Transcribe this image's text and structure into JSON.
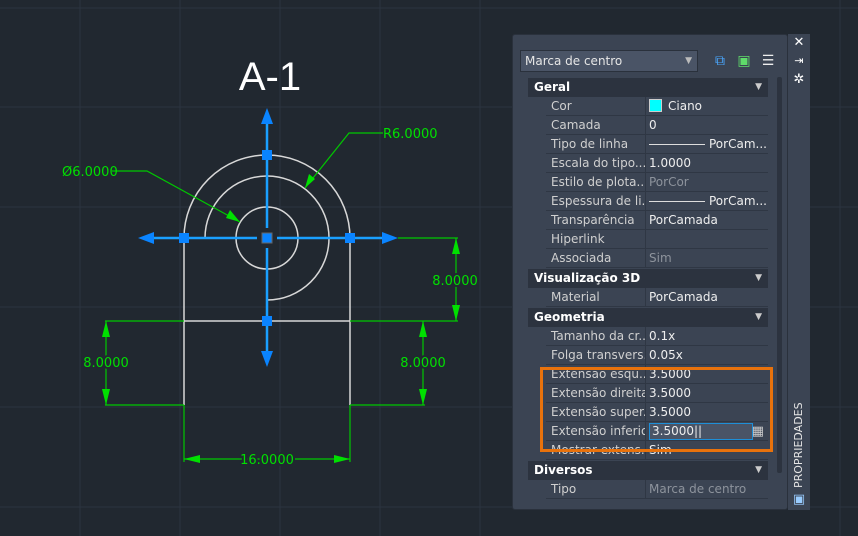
{
  "drawing": {
    "title": "A-1",
    "dims": {
      "diameter": "Ø6.0000",
      "radius": "R6.0000",
      "right_upper": "8.0000",
      "left": "8.0000",
      "right_lower": "8.0000",
      "bottom": "16.0000"
    }
  },
  "panel": {
    "selector": "Marca de centro",
    "side_label": "PROPRIEDADES",
    "sections": [
      {
        "title": "Geral",
        "rows": [
          [
            "Cor",
            "Ciano"
          ],
          [
            "Camada",
            "0"
          ],
          [
            "Tipo de linha",
            "PorCam..."
          ],
          [
            "Escala do tipo...",
            "1.0000"
          ],
          [
            "Estilo de plota...",
            "PorCor"
          ],
          [
            "Espessura de li...",
            "PorCam..."
          ],
          [
            "Transparência",
            "PorCamada"
          ],
          [
            "Hiperlink",
            ""
          ],
          [
            "Associada",
            "Sim"
          ]
        ]
      },
      {
        "title": "Visualização 3D",
        "rows": [
          [
            "Material",
            "PorCamada"
          ]
        ]
      },
      {
        "title": "Geometria",
        "rows": [
          [
            "Tamanho da cr...",
            "0.1x"
          ],
          [
            "Folga transvers...",
            "0.05x"
          ],
          [
            "Extensão esqu...",
            "3.5000"
          ],
          [
            "Extensão direita",
            "3.5000"
          ],
          [
            "Extensão super...",
            "3.5000"
          ],
          [
            "Extensão inferior",
            "3.5000"
          ],
          [
            "Mostrar extens...",
            "Sim"
          ]
        ]
      },
      {
        "title": "Diversos",
        "rows": [
          [
            "Tipo",
            "Marca de centro"
          ]
        ]
      }
    ]
  },
  "colors": {
    "background": "#212830",
    "dimension": "#00d000",
    "grip": "#0a84ff",
    "highlight": "#e8720c",
    "swatch": "#00ffff"
  }
}
